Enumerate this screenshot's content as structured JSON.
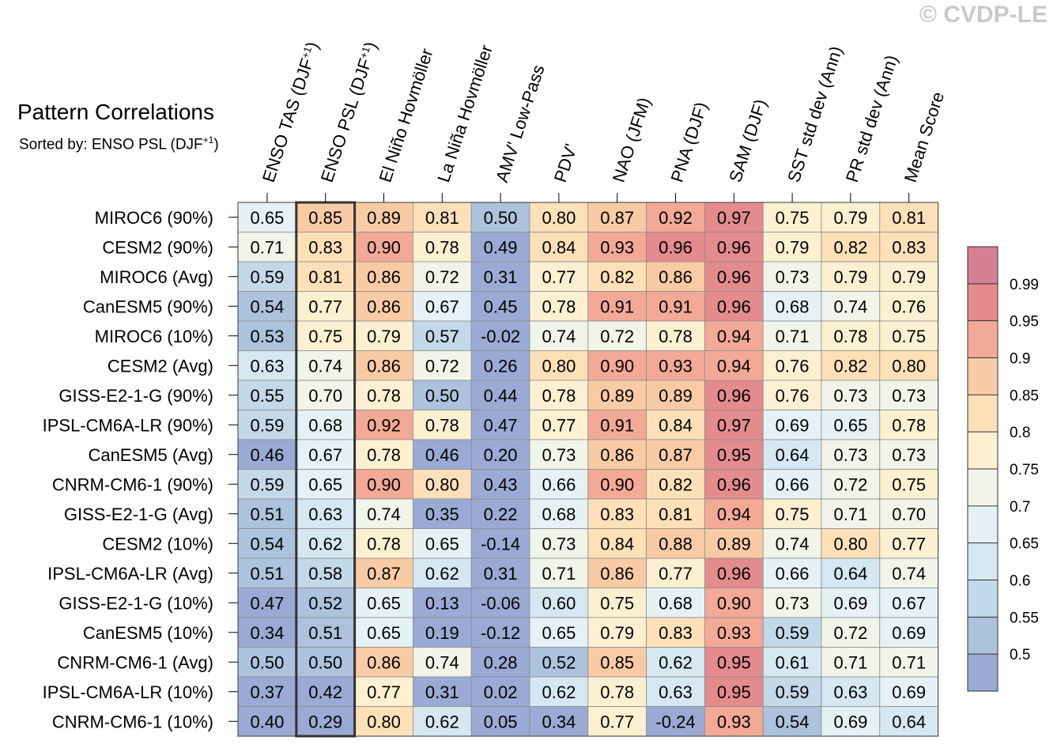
{
  "copyright": "© CVDP-LE",
  "title": "Pattern Correlations",
  "subtitle_prefix": "Sorted by: ENSO PSL (DJF",
  "subtitle_sup": "+1",
  "subtitle_suffix": ")",
  "chart_data": {
    "type": "heatmap",
    "columns": [
      {
        "label": "ENSO TAS (DJF",
        "sup": "+1",
        "tail": ")"
      },
      {
        "label": "ENSO PSL (DJF",
        "sup": "+1",
        "tail": ")"
      },
      {
        "label": "El Niño Hovmöller",
        "sup": "",
        "tail": ""
      },
      {
        "label": "La Niña Hovmöller",
        "sup": "",
        "tail": ""
      },
      {
        "label": "AMV' Low-Pass",
        "sup": "",
        "tail": ""
      },
      {
        "label": "PDV'",
        "sup": "",
        "tail": ""
      },
      {
        "label": "NAO (JFM)",
        "sup": "",
        "tail": ""
      },
      {
        "label": "PNA (DJF)",
        "sup": "",
        "tail": ""
      },
      {
        "label": "SAM (DJF)",
        "sup": "",
        "tail": ""
      },
      {
        "label": "SST std dev (Ann)",
        "sup": "",
        "tail": ""
      },
      {
        "label": "PR std dev (Ann)",
        "sup": "",
        "tail": ""
      },
      {
        "label": "Mean Score",
        "sup": "",
        "tail": ""
      }
    ],
    "highlight_column": 1,
    "rows": [
      {
        "name": "MIROC6 (90%)",
        "values": [
          "0.65",
          "0.85",
          "0.89",
          "0.81",
          "0.50",
          "0.80",
          "0.87",
          "0.92",
          "0.97",
          "0.75",
          "0.79",
          "0.81"
        ]
      },
      {
        "name": "CESM2 (90%)",
        "values": [
          "0.71",
          "0.83",
          "0.90",
          "0.78",
          "0.49",
          "0.84",
          "0.93",
          "0.96",
          "0.96",
          "0.79",
          "0.82",
          "0.83"
        ]
      },
      {
        "name": "MIROC6 (Avg)",
        "values": [
          "0.59",
          "0.81",
          "0.86",
          "0.72",
          "0.31",
          "0.77",
          "0.82",
          "0.86",
          "0.96",
          "0.73",
          "0.79",
          "0.79"
        ]
      },
      {
        "name": "CanESM5 (90%)",
        "values": [
          "0.54",
          "0.77",
          "0.86",
          "0.67",
          "0.45",
          "0.78",
          "0.91",
          "0.91",
          "0.96",
          "0.68",
          "0.74",
          "0.76"
        ]
      },
      {
        "name": "MIROC6 (10%)",
        "values": [
          "0.53",
          "0.75",
          "0.79",
          "0.57",
          "-0.02",
          "0.74",
          "0.72",
          "0.78",
          "0.94",
          "0.71",
          "0.78",
          "0.75"
        ]
      },
      {
        "name": "CESM2 (Avg)",
        "values": [
          "0.63",
          "0.74",
          "0.86",
          "0.72",
          "0.26",
          "0.80",
          "0.90",
          "0.93",
          "0.94",
          "0.76",
          "0.82",
          "0.80"
        ]
      },
      {
        "name": "GISS-E2-1-G (90%)",
        "values": [
          "0.55",
          "0.70",
          "0.78",
          "0.50",
          "0.44",
          "0.78",
          "0.89",
          "0.89",
          "0.96",
          "0.76",
          "0.73",
          "0.73"
        ]
      },
      {
        "name": "IPSL-CM6A-LR (90%)",
        "values": [
          "0.59",
          "0.68",
          "0.92",
          "0.78",
          "0.47",
          "0.77",
          "0.91",
          "0.84",
          "0.97",
          "0.69",
          "0.65",
          "0.78"
        ]
      },
      {
        "name": "CanESM5 (Avg)",
        "values": [
          "0.46",
          "0.67",
          "0.78",
          "0.46",
          "0.20",
          "0.73",
          "0.86",
          "0.87",
          "0.95",
          "0.64",
          "0.73",
          "0.73"
        ]
      },
      {
        "name": "CNRM-CM6-1 (90%)",
        "values": [
          "0.59",
          "0.65",
          "0.90",
          "0.80",
          "0.43",
          "0.66",
          "0.90",
          "0.82",
          "0.96",
          "0.66",
          "0.72",
          "0.75"
        ]
      },
      {
        "name": "GISS-E2-1-G (Avg)",
        "values": [
          "0.51",
          "0.63",
          "0.74",
          "0.35",
          "0.22",
          "0.68",
          "0.83",
          "0.81",
          "0.94",
          "0.75",
          "0.71",
          "0.70"
        ]
      },
      {
        "name": "CESM2 (10%)",
        "values": [
          "0.54",
          "0.62",
          "0.78",
          "0.65",
          "-0.14",
          "0.73",
          "0.84",
          "0.88",
          "0.89",
          "0.74",
          "0.80",
          "0.77"
        ]
      },
      {
        "name": "IPSL-CM6A-LR (Avg)",
        "values": [
          "0.51",
          "0.58",
          "0.87",
          "0.62",
          "0.31",
          "0.71",
          "0.86",
          "0.77",
          "0.96",
          "0.66",
          "0.64",
          "0.74"
        ]
      },
      {
        "name": "GISS-E2-1-G (10%)",
        "values": [
          "0.47",
          "0.52",
          "0.65",
          "0.13",
          "-0.06",
          "0.60",
          "0.75",
          "0.68",
          "0.90",
          "0.73",
          "0.69",
          "0.67"
        ]
      },
      {
        "name": "CanESM5 (10%)",
        "values": [
          "0.34",
          "0.51",
          "0.65",
          "0.19",
          "-0.12",
          "0.65",
          "0.79",
          "0.83",
          "0.93",
          "0.59",
          "0.72",
          "0.69"
        ]
      },
      {
        "name": "CNRM-CM6-1 (Avg)",
        "values": [
          "0.50",
          "0.50",
          "0.86",
          "0.74",
          "0.28",
          "0.52",
          "0.85",
          "0.62",
          "0.95",
          "0.61",
          "0.71",
          "0.71"
        ]
      },
      {
        "name": "IPSL-CM6A-LR (10%)",
        "values": [
          "0.37",
          "0.42",
          "0.77",
          "0.31",
          "0.02",
          "0.62",
          "0.78",
          "0.63",
          "0.95",
          "0.59",
          "0.63",
          "0.69"
        ]
      },
      {
        "name": "CNRM-CM6-1 (10%)",
        "values": [
          "0.40",
          "0.29",
          "0.80",
          "0.62",
          "0.05",
          "0.34",
          "0.77",
          "-0.24",
          "0.93",
          "0.54",
          "0.69",
          "0.64"
        ]
      }
    ],
    "colorbar": {
      "bounds": [
        0.5,
        0.55,
        0.6,
        0.65,
        0.7,
        0.75,
        0.8,
        0.85,
        0.9,
        0.95,
        0.99
      ],
      "labels": [
        "0.5",
        "0.55",
        "0.6",
        "0.65",
        "0.7",
        "0.75",
        "0.8",
        "0.85",
        "0.9",
        "0.95",
        "0.99"
      ],
      "colors": [
        "#9aaad4",
        "#acc2dd",
        "#c3d8e8",
        "#d5e7f0",
        "#e6f1f5",
        "#f1f4e9",
        "#fdf0d1",
        "#fde0b7",
        "#f9cba4",
        "#f2a996",
        "#e38b8d",
        "#d57f93"
      ]
    }
  }
}
